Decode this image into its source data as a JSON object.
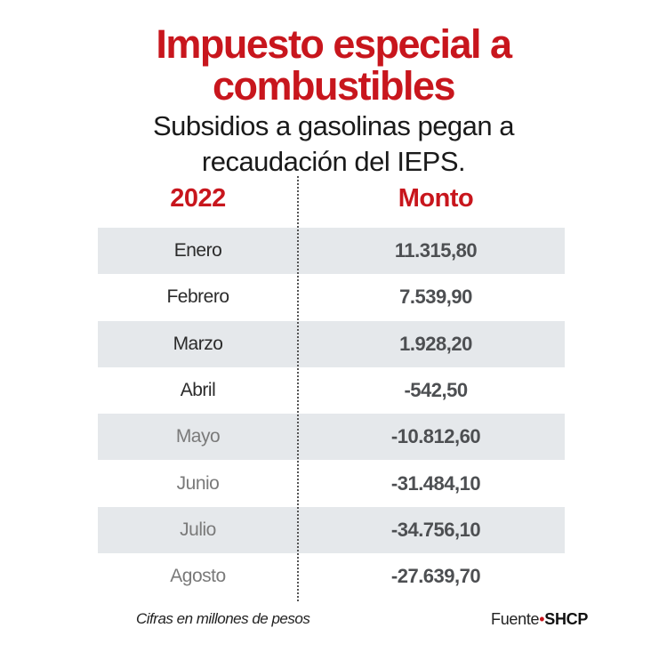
{
  "header": {
    "title_line1": "Impuesto especial a",
    "title_line2": "combustibles",
    "subtitle_line1": "Subsidios a  gasolinas pegan a",
    "subtitle_line2": "recaudación del IEPS."
  },
  "colors": {
    "accent": "#c8161d",
    "row_shade": "#e5e8eb",
    "value_text": "#4d4f52"
  },
  "chart_data": {
    "type": "table",
    "columns": [
      "2022",
      "Monto"
    ],
    "rows": [
      {
        "month": "Enero",
        "value": "11.315,80"
      },
      {
        "month": "Febrero",
        "value": "7.539,90"
      },
      {
        "month": "Marzo",
        "value": "1.928,20"
      },
      {
        "month": "Abril",
        "value": "-542,50"
      },
      {
        "month": "Mayo",
        "value": "-10.812,60"
      },
      {
        "month": "Junio",
        "value": "-31.484,10"
      },
      {
        "month": "Julio",
        "value": "-34.756,10"
      },
      {
        "month": "Agosto",
        "value": "-27.639,70"
      }
    ]
  },
  "footer": {
    "note": "Cifras en millones de pesos",
    "source_label": "Fuente",
    "source_separator": "•",
    "source_name": "SHCP"
  }
}
